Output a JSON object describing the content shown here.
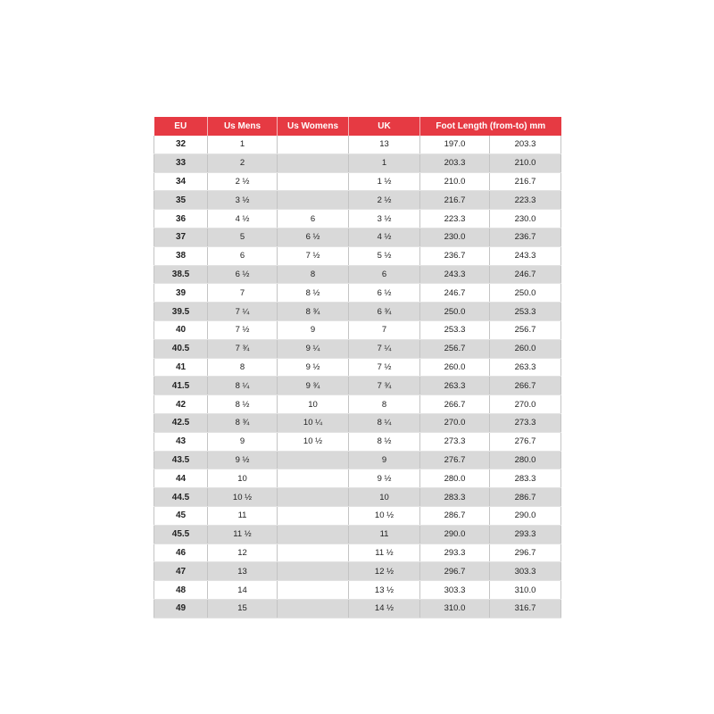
{
  "table": {
    "headers": [
      "EU",
      "Us Mens",
      "Us Womens",
      "UK",
      "Foot Length (from-to) mm"
    ],
    "rows": [
      [
        "32",
        "1",
        null,
        "13",
        "197.0",
        "203.3"
      ],
      [
        "33",
        "2",
        null,
        "1",
        "203.3",
        "210.0"
      ],
      [
        "34",
        "2 ½",
        null,
        "1 ½",
        "210.0",
        "216.7"
      ],
      [
        "35",
        "3 ½",
        null,
        "2 ½",
        "216.7",
        "223.3"
      ],
      [
        "36",
        "4 ½",
        "6",
        "3 ½",
        "223.3",
        "230.0"
      ],
      [
        "37",
        "5",
        "6 ½",
        "4 ½",
        "230.0",
        "236.7"
      ],
      [
        "38",
        "6",
        "7 ½",
        "5 ½",
        "236.7",
        "243.3"
      ],
      [
        "38.5",
        "6 ½",
        "8",
        "6",
        "243.3",
        "246.7"
      ],
      [
        "39",
        "7",
        "8 ½",
        "6 ½",
        "246.7",
        "250.0"
      ],
      [
        "39.5",
        "7 ¼",
        "8 ¾",
        "6 ¾",
        "250.0",
        "253.3"
      ],
      [
        "40",
        "7 ½",
        "9",
        "7",
        "253.3",
        "256.7"
      ],
      [
        "40.5",
        "7 ¾",
        "9 ¼",
        "7 ¼",
        "256.7",
        "260.0"
      ],
      [
        "41",
        "8",
        "9 ½",
        "7 ½",
        "260.0",
        "263.3"
      ],
      [
        "41.5",
        "8 ¼",
        "9 ¾",
        "7 ¾",
        "263.3",
        "266.7"
      ],
      [
        "42",
        "8 ½",
        "10",
        "8",
        "266.7",
        "270.0"
      ],
      [
        "42.5",
        "8 ¾",
        "10 ¼",
        "8 ¼",
        "270.0",
        "273.3"
      ],
      [
        "43",
        "9",
        "10 ½",
        "8 ½",
        "273.3",
        "276.7"
      ],
      [
        "43.5",
        "9 ½",
        null,
        "9",
        "276.7",
        "280.0"
      ],
      [
        "44",
        "10",
        null,
        "9 ½",
        "280.0",
        "283.3"
      ],
      [
        "44.5",
        "10 ½",
        null,
        "10",
        "283.3",
        "286.7"
      ],
      [
        "45",
        "11",
        null,
        "10 ½",
        "286.7",
        "290.0"
      ],
      [
        "45.5",
        "11 ½",
        null,
        "11",
        "290.0",
        "293.3"
      ],
      [
        "46",
        "12",
        null,
        "11 ½",
        "293.3",
        "296.7"
      ],
      [
        "47",
        "13",
        null,
        "12 ½",
        "296.7",
        "303.3"
      ],
      [
        "48",
        "14",
        null,
        "13 ½",
        "303.3",
        "310.0"
      ],
      [
        "49",
        "15",
        null,
        "14 ½",
        "310.0",
        "316.7"
      ]
    ]
  }
}
